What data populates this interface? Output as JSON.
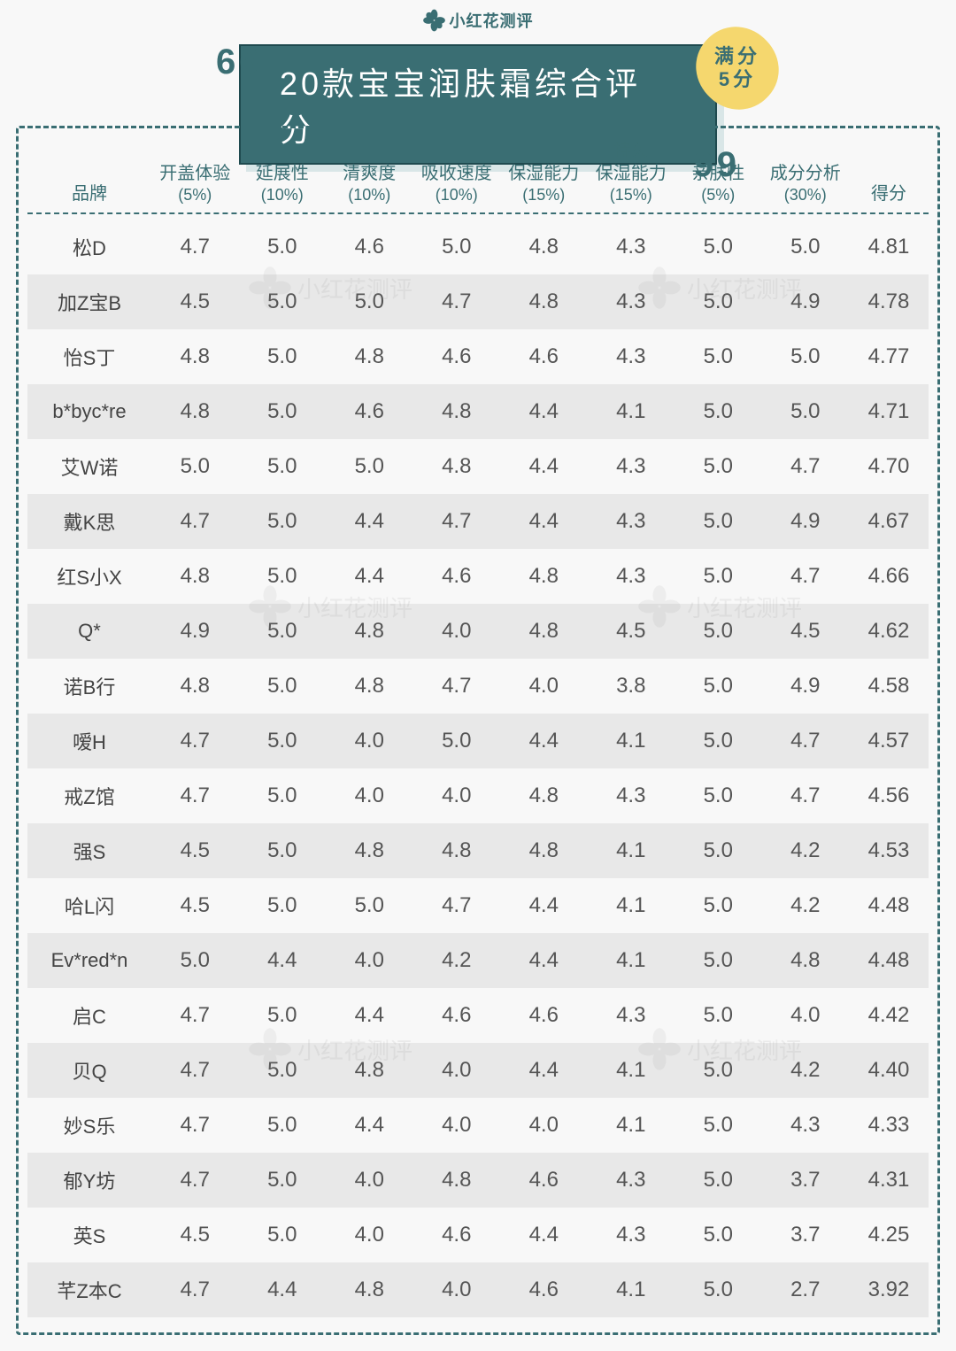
{
  "logo_text": "小红花测评",
  "title": "20款宝宝润肤霜综合评分",
  "badge_line1": "满分",
  "badge_line2": "5分",
  "colors": {
    "accent": "#3a6e73",
    "badge": "#f5d76e",
    "row_alt": "#e8e8e8",
    "background": "#f8f8f8",
    "text": "#555555"
  },
  "columns": [
    {
      "label": "品牌",
      "sub": ""
    },
    {
      "label": "开盖体验",
      "sub": "(5%)"
    },
    {
      "label": "延展性",
      "sub": "(10%)"
    },
    {
      "label": "清爽度",
      "sub": "(10%)"
    },
    {
      "label": "吸收速度",
      "sub": "(10%)"
    },
    {
      "label": "保湿能力",
      "sub": "(15%)"
    },
    {
      "label": "持久\n保湿能力",
      "sub": "(15%)"
    },
    {
      "label": "亲肤性",
      "sub": "(5%)"
    },
    {
      "label": "成分分析",
      "sub": "(30%)"
    },
    {
      "label": "得分",
      "sub": ""
    }
  ],
  "rows": [
    {
      "brand": "松D",
      "v": [
        "4.7",
        "5.0",
        "4.6",
        "5.0",
        "4.8",
        "4.3",
        "5.0",
        "5.0"
      ],
      "score": "4.81"
    },
    {
      "brand": "加Z宝B",
      "v": [
        "4.5",
        "5.0",
        "5.0",
        "4.7",
        "4.8",
        "4.3",
        "5.0",
        "4.9"
      ],
      "score": "4.78"
    },
    {
      "brand": "怡S丁",
      "v": [
        "4.8",
        "5.0",
        "4.8",
        "4.6",
        "4.6",
        "4.3",
        "5.0",
        "5.0"
      ],
      "score": "4.77"
    },
    {
      "brand": "b*byc*re",
      "v": [
        "4.8",
        "5.0",
        "4.6",
        "4.8",
        "4.4",
        "4.1",
        "5.0",
        "5.0"
      ],
      "score": "4.71"
    },
    {
      "brand": "艾W诺",
      "v": [
        "5.0",
        "5.0",
        "5.0",
        "4.8",
        "4.4",
        "4.3",
        "5.0",
        "4.7"
      ],
      "score": "4.70"
    },
    {
      "brand": "戴K思",
      "v": [
        "4.7",
        "5.0",
        "4.4",
        "4.7",
        "4.4",
        "4.3",
        "5.0",
        "4.9"
      ],
      "score": "4.67"
    },
    {
      "brand": "红S小X",
      "v": [
        "4.8",
        "5.0",
        "4.4",
        "4.6",
        "4.8",
        "4.3",
        "5.0",
        "4.7"
      ],
      "score": "4.66"
    },
    {
      "brand": "Q*",
      "v": [
        "4.9",
        "5.0",
        "4.8",
        "4.0",
        "4.8",
        "4.5",
        "5.0",
        "4.5"
      ],
      "score": "4.62"
    },
    {
      "brand": "诺B行",
      "v": [
        "4.8",
        "5.0",
        "4.8",
        "4.7",
        "4.0",
        "3.8",
        "5.0",
        "4.9"
      ],
      "score": "4.58"
    },
    {
      "brand": "嗳H",
      "v": [
        "4.7",
        "5.0",
        "4.0",
        "5.0",
        "4.4",
        "4.1",
        "5.0",
        "4.7"
      ],
      "score": "4.57"
    },
    {
      "brand": "戒Z馆",
      "v": [
        "4.7",
        "5.0",
        "4.0",
        "4.0",
        "4.8",
        "4.3",
        "5.0",
        "4.7"
      ],
      "score": "4.56"
    },
    {
      "brand": "强S",
      "v": [
        "4.5",
        "5.0",
        "4.8",
        "4.8",
        "4.8",
        "4.1",
        "5.0",
        "4.2"
      ],
      "score": "4.53"
    },
    {
      "brand": "哈L闪",
      "v": [
        "4.5",
        "5.0",
        "5.0",
        "4.7",
        "4.4",
        "4.1",
        "5.0",
        "4.2"
      ],
      "score": "4.48"
    },
    {
      "brand": "Ev*red*n",
      "v": [
        "5.0",
        "4.4",
        "4.0",
        "4.2",
        "4.4",
        "4.1",
        "5.0",
        "4.8"
      ],
      "score": "4.48"
    },
    {
      "brand": "启C",
      "v": [
        "4.7",
        "5.0",
        "4.4",
        "4.6",
        "4.6",
        "4.3",
        "5.0",
        "4.0"
      ],
      "score": "4.42"
    },
    {
      "brand": "贝Q",
      "v": [
        "4.7",
        "5.0",
        "4.8",
        "4.0",
        "4.4",
        "4.1",
        "5.0",
        "4.2"
      ],
      "score": "4.40"
    },
    {
      "brand": "妙S乐",
      "v": [
        "4.7",
        "5.0",
        "4.4",
        "4.0",
        "4.0",
        "4.1",
        "5.0",
        "4.3"
      ],
      "score": "4.33"
    },
    {
      "brand": "郁Y坊",
      "v": [
        "4.7",
        "5.0",
        "4.0",
        "4.8",
        "4.6",
        "4.3",
        "5.0",
        "3.7"
      ],
      "score": "4.31"
    },
    {
      "brand": "英S",
      "v": [
        "4.5",
        "5.0",
        "4.0",
        "4.6",
        "4.4",
        "4.3",
        "5.0",
        "3.7"
      ],
      "score": "4.25"
    },
    {
      "brand": "芊Z本C",
      "v": [
        "4.7",
        "4.4",
        "4.8",
        "4.0",
        "4.6",
        "4.1",
        "5.0",
        "2.7"
      ],
      "score": "3.92"
    }
  ],
  "watermark_text": "小红花测评"
}
